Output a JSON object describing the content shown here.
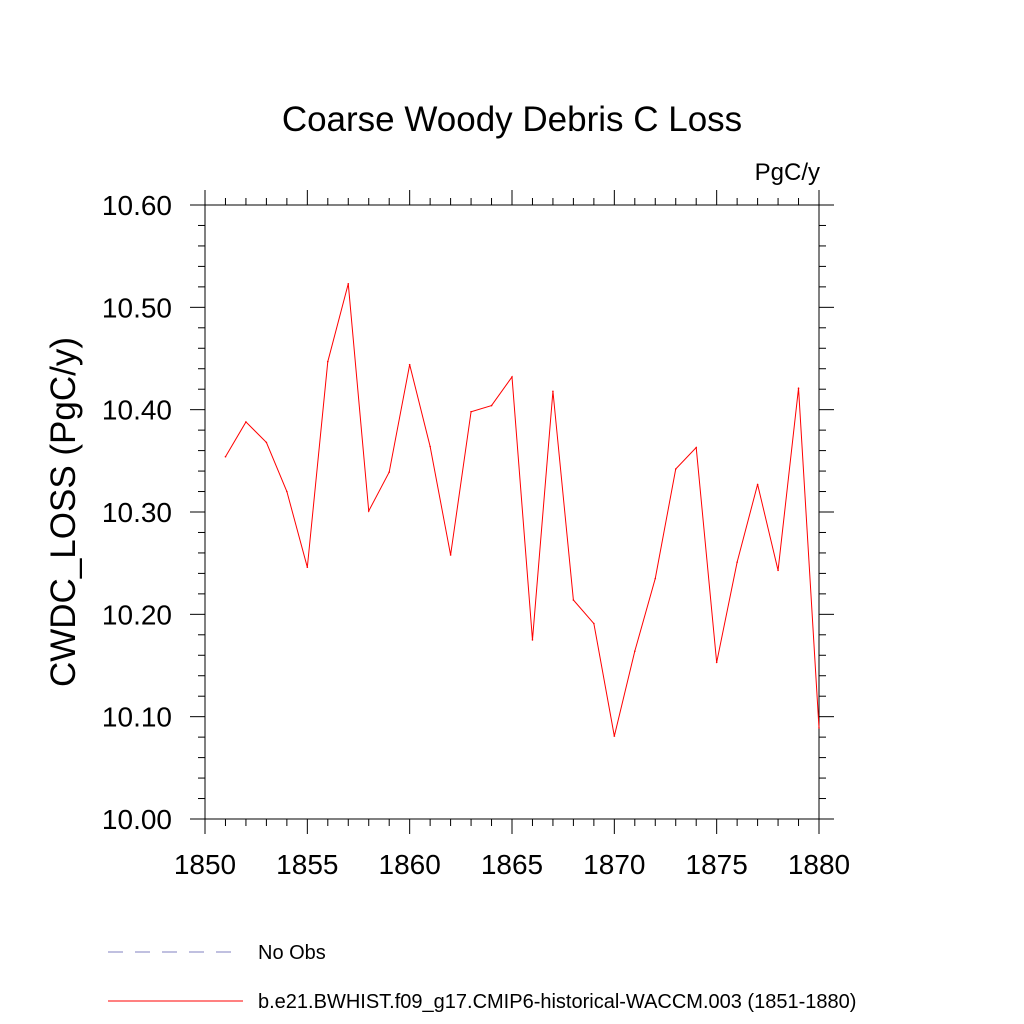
{
  "chart_data": {
    "type": "line",
    "title": "Coarse Woody Debris C Loss",
    "units_label": "PgC/y",
    "xlabel": "",
    "ylabel": "CWDC_LOSS  (PgC/y)",
    "xlim": [
      1850,
      1880
    ],
    "ylim": [
      10.0,
      10.6
    ],
    "x_ticks": [
      1850,
      1855,
      1860,
      1865,
      1870,
      1875,
      1880
    ],
    "x_tick_labels": [
      "1850",
      "1855",
      "1860",
      "1865",
      "1870",
      "1875",
      "1880"
    ],
    "y_ticks": [
      10.0,
      10.1,
      10.2,
      10.3,
      10.4,
      10.5,
      10.6
    ],
    "y_tick_labels": [
      "10.00",
      "10.10",
      "10.20",
      "10.30",
      "10.40",
      "10.50",
      "10.60"
    ],
    "series": [
      {
        "name": "b.e21.BWHIST.f09_g17.CMIP6-historical-WACCM.003 (1851-1880)",
        "color": "#ff0000",
        "x": [
          1851,
          1852,
          1853,
          1854,
          1855,
          1856,
          1857,
          1858,
          1859,
          1860,
          1861,
          1862,
          1863,
          1864,
          1865,
          1866,
          1867,
          1868,
          1869,
          1870,
          1871,
          1872,
          1873,
          1874,
          1875,
          1876,
          1877,
          1878,
          1879,
          1880
        ],
        "values": [
          10.354,
          10.388,
          10.368,
          10.32,
          10.246,
          10.447,
          10.523,
          10.301,
          10.339,
          10.444,
          10.364,
          10.258,
          10.398,
          10.404,
          10.432,
          10.175,
          10.418,
          10.214,
          10.191,
          10.081,
          10.164,
          10.235,
          10.342,
          10.363,
          10.153,
          10.251,
          10.327,
          10.243,
          10.421,
          10.089
        ]
      }
    ],
    "legend": [
      {
        "label": "No Obs",
        "color": "#8080c0",
        "style": "dashed"
      },
      {
        "label": "b.e21.BWHIST.f09_g17.CMIP6-historical-WACCM.003 (1851-1880)",
        "color": "#ff0000",
        "style": "solid"
      }
    ]
  }
}
